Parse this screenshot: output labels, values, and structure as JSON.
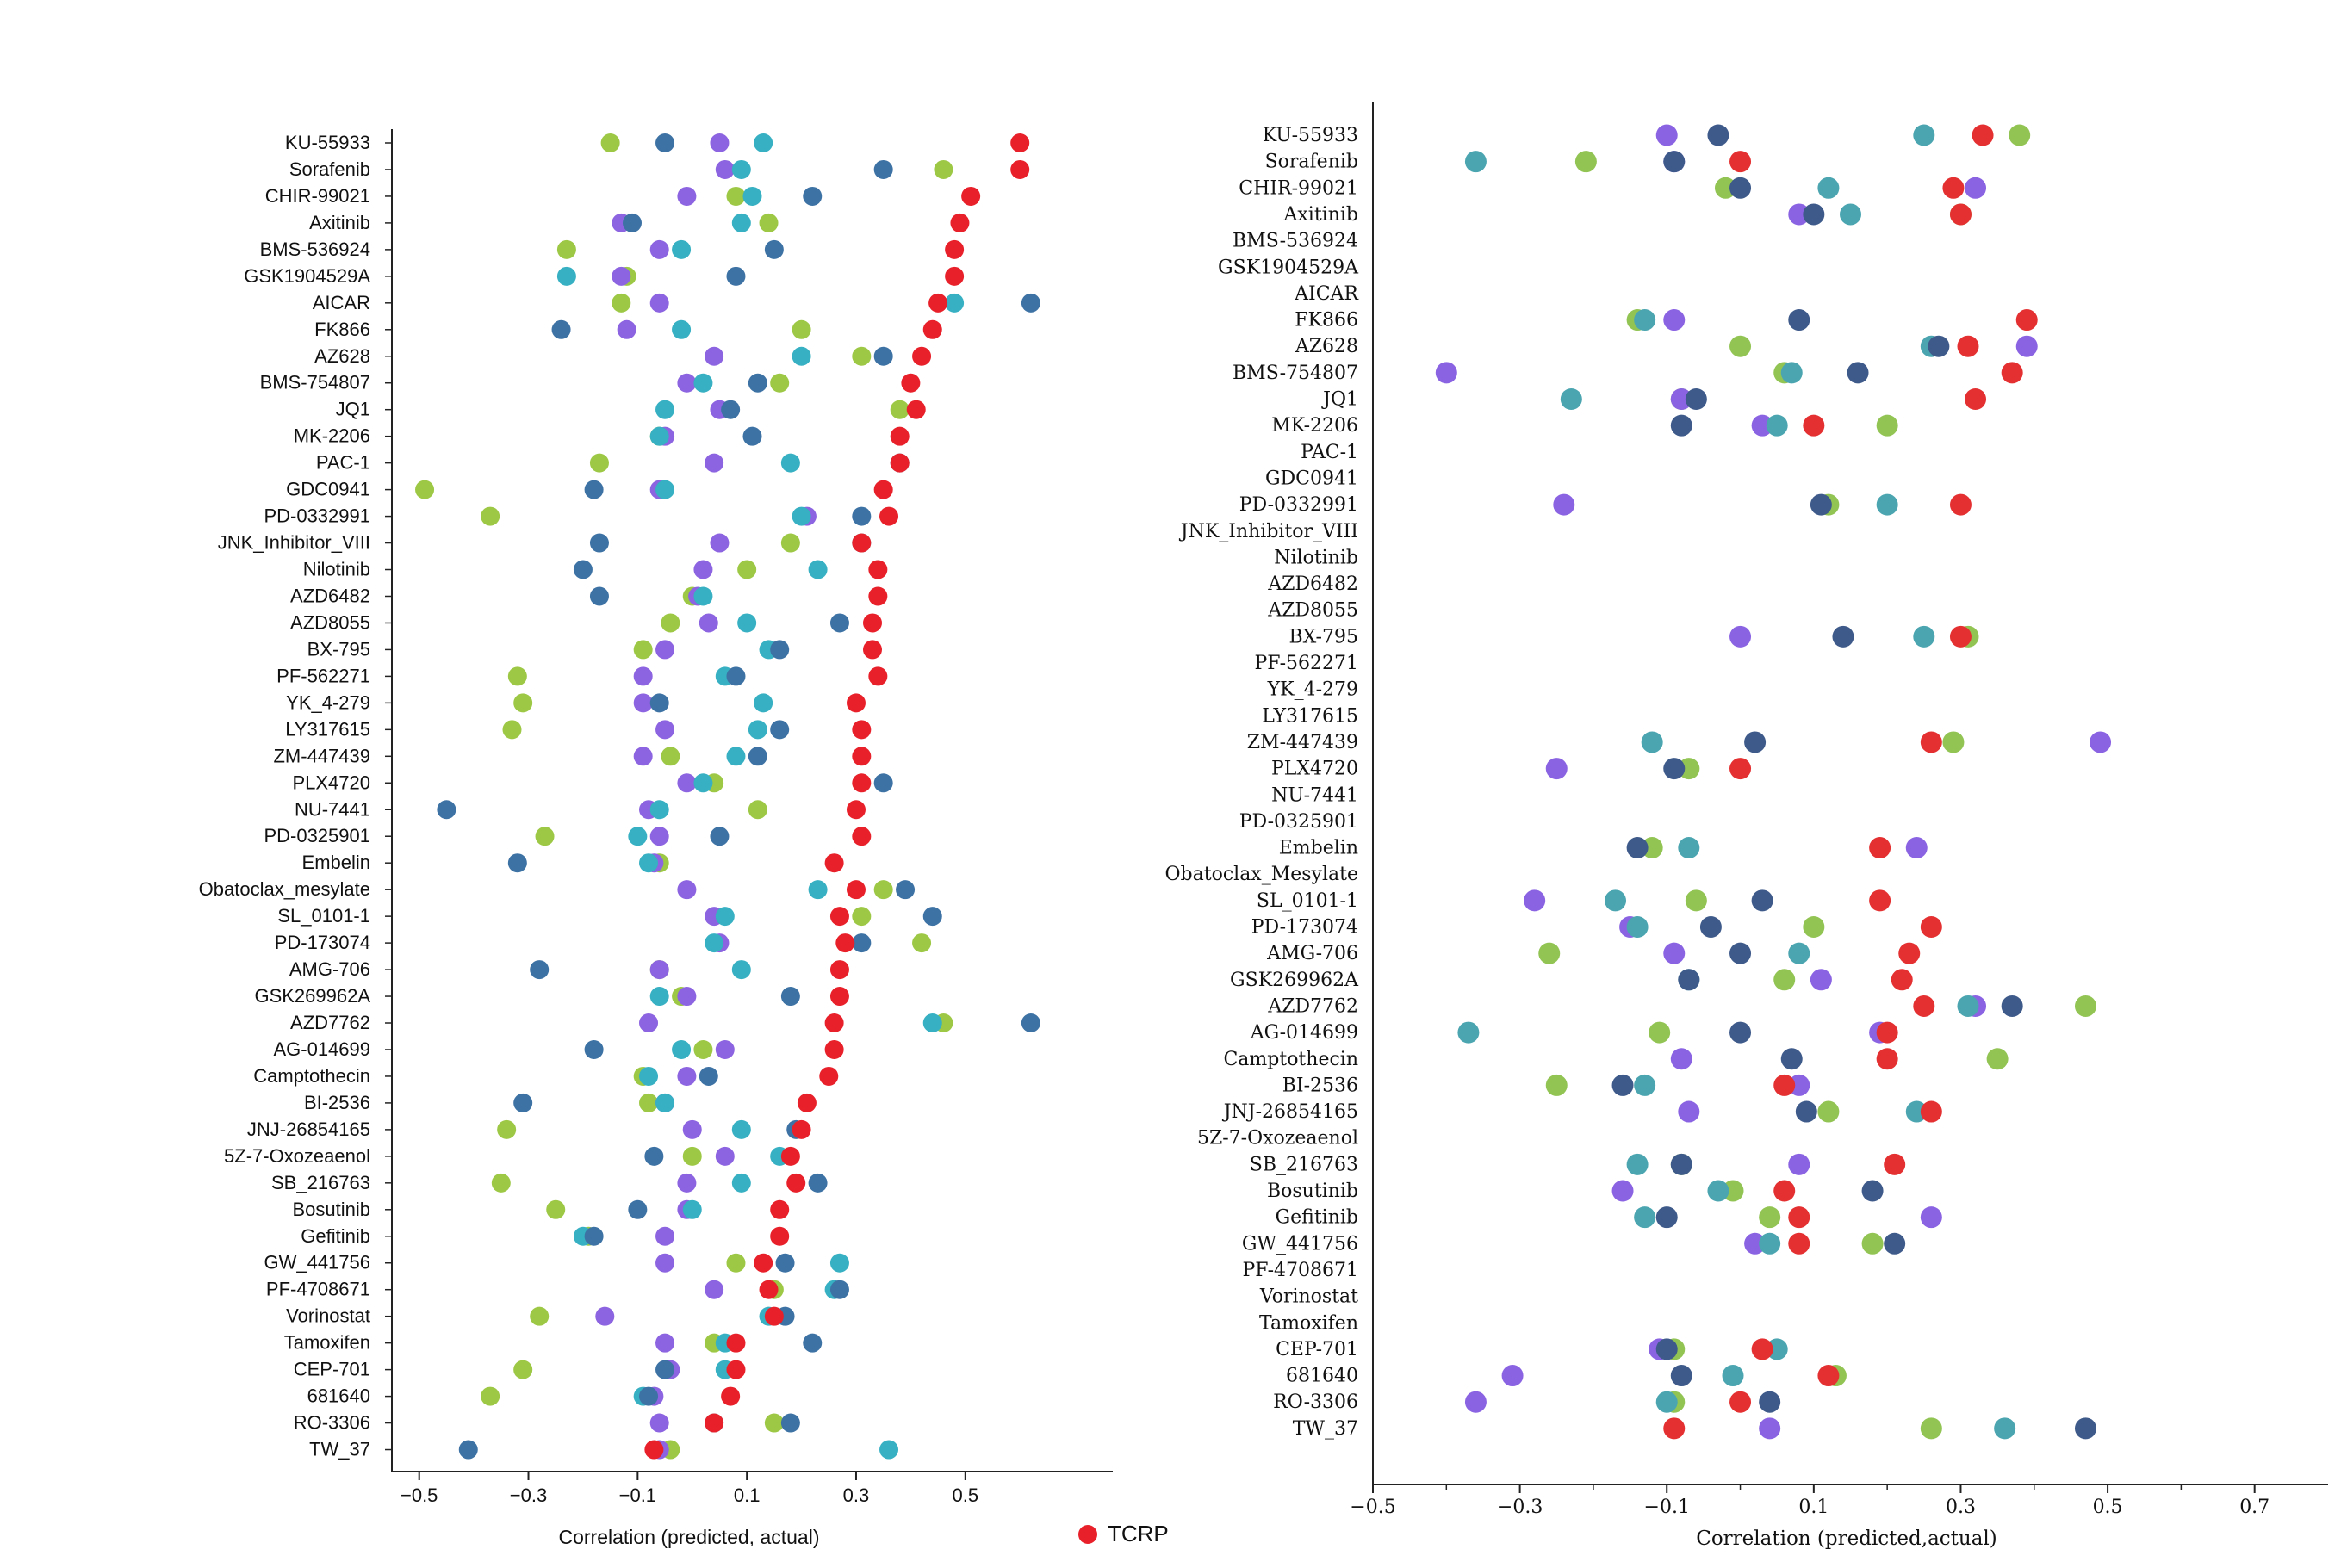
{
  "chart_data": [
    {
      "type": "scatter",
      "xlabel": "Correlation (predicted, actual)",
      "xticks": [
        -0.5,
        -0.3,
        -0.1,
        0.1,
        0.3,
        0.5
      ],
      "xlim": [
        -0.55,
        0.77
      ],
      "legend": {
        "placement": "bottom-right",
        "entries": [
          {
            "name": "TCRP",
            "color": "#e8202a"
          }
        ]
      },
      "colors": {
        "green": "#9dc845",
        "purple": "#8c63e0",
        "teal": "#36b0c2",
        "blue": "#3d72a4",
        "red": "#e8202a"
      },
      "drugs": [
        "KU-55933",
        "Sorafenib",
        "CHIR-99021",
        "Axitinib",
        "BMS-536924",
        "GSK1904529A",
        "AICAR",
        "FK866",
        "AZ628",
        "BMS-754807",
        "JQ1",
        "MK-2206",
        "PAC-1",
        "GDC0941",
        "PD-0332991",
        "JNK_Inhibitor_VIII",
        "Nilotinib",
        "AZD6482",
        "AZD8055",
        "BX-795",
        "PF-562271",
        "YK_4-279",
        "LY317615",
        "ZM-447439",
        "PLX4720",
        "NU-7441",
        "PD-0325901",
        "Embelin",
        "Obatoclax_mesylate",
        "SL_0101-1",
        "PD-173074",
        "AMG-706",
        "GSK269962A",
        "AZD7762",
        "AG-014699",
        "Camptothecin",
        "BI-2536",
        "JNJ-26854165",
        "5Z-7-Oxozeaenol",
        "SB_216763",
        "Bosutinib",
        "Gefitinib",
        "GW_441756",
        "PF-4708671",
        "Vorinostat",
        "Tamoxifen",
        "CEP-701",
        "681640",
        "RO-3306",
        "TW_37"
      ],
      "series": [
        {
          "color": "green",
          "values": [
            -0.15,
            0.46,
            0.08,
            0.14,
            -0.23,
            -0.12,
            -0.13,
            0.2,
            0.31,
            0.16,
            0.38,
            -0.06,
            -0.17,
            -0.49,
            -0.37,
            0.18,
            0.1,
            0.0,
            -0.04,
            -0.09,
            -0.32,
            -0.31,
            -0.33,
            -0.04,
            0.04,
            0.12,
            -0.27,
            -0.06,
            0.35,
            0.31,
            0.42,
            -0.06,
            -0.02,
            0.46,
            0.02,
            -0.09,
            -0.08,
            -0.34,
            0.0,
            -0.35,
            -0.25,
            -0.19,
            0.08,
            0.15,
            -0.28,
            0.04,
            -0.31,
            -0.37,
            0.15,
            -0.04
          ]
        },
        {
          "color": "purple",
          "values": [
            0.05,
            0.06,
            -0.01,
            -0.13,
            -0.06,
            -0.13,
            -0.06,
            -0.12,
            0.04,
            -0.01,
            0.05,
            -0.05,
            0.04,
            -0.06,
            0.21,
            0.05,
            0.02,
            0.01,
            0.03,
            -0.05,
            -0.09,
            -0.09,
            -0.05,
            -0.09,
            -0.01,
            -0.08,
            -0.06,
            -0.07,
            -0.01,
            0.04,
            0.05,
            -0.06,
            -0.01,
            -0.08,
            0.06,
            -0.01,
            -0.05,
            0.0,
            0.06,
            -0.01,
            -0.01,
            -0.05,
            -0.05,
            0.04,
            -0.16,
            -0.05,
            -0.04,
            -0.07,
            -0.06,
            -0.06
          ]
        },
        {
          "color": "teal",
          "values": [
            0.13,
            0.09,
            0.11,
            0.09,
            -0.02,
            -0.23,
            0.48,
            -0.02,
            0.2,
            0.02,
            -0.05,
            -0.06,
            0.18,
            -0.05,
            0.2,
            0.31,
            0.23,
            0.02,
            0.1,
            0.14,
            0.06,
            0.13,
            0.12,
            0.08,
            0.02,
            -0.06,
            -0.1,
            -0.08,
            0.23,
            0.06,
            0.04,
            0.09,
            -0.06,
            0.44,
            -0.02,
            -0.08,
            -0.05,
            0.09,
            0.16,
            0.09,
            0.0,
            -0.2,
            0.27,
            0.26,
            0.14,
            0.06,
            0.06,
            -0.09,
            0.04,
            0.36
          ]
        },
        {
          "color": "blue",
          "values": [
            -0.05,
            0.35,
            0.22,
            -0.11,
            0.15,
            0.08,
            0.62,
            -0.24,
            0.35,
            0.12,
            0.07,
            0.11,
            0.38,
            -0.18,
            0.31,
            -0.17,
            -0.2,
            -0.17,
            0.27,
            0.16,
            0.08,
            -0.06,
            0.16,
            0.12,
            0.35,
            -0.45,
            0.05,
            -0.32,
            0.39,
            0.44,
            0.31,
            -0.28,
            0.18,
            0.62,
            -0.18,
            0.03,
            -0.31,
            0.19,
            -0.07,
            0.23,
            -0.1,
            -0.18,
            0.17,
            0.27,
            0.17,
            0.22,
            -0.05,
            -0.08,
            0.18,
            -0.41
          ]
        },
        {
          "color": "red",
          "values": [
            0.6,
            0.6,
            0.51,
            0.49,
            0.48,
            0.48,
            0.45,
            0.44,
            0.42,
            0.4,
            0.41,
            0.38,
            0.38,
            0.35,
            0.36,
            0.31,
            0.34,
            0.34,
            0.33,
            0.33,
            0.34,
            0.3,
            0.31,
            0.31,
            0.31,
            0.3,
            0.31,
            0.26,
            0.3,
            0.27,
            0.28,
            0.27,
            0.27,
            0.26,
            0.26,
            0.25,
            0.21,
            0.2,
            0.18,
            0.19,
            0.16,
            0.16,
            0.13,
            0.14,
            0.15,
            0.08,
            0.08,
            0.07,
            0.04,
            -0.07
          ]
        }
      ]
    },
    {
      "type": "scatter",
      "xlabel": "Correlation (predicted,actual)",
      "xticks": [
        -0.5,
        -0.3,
        -0.1,
        0.1,
        0.3,
        0.5,
        0.7
      ],
      "xlim": [
        -0.5,
        0.8
      ],
      "colors": {
        "green": "#92c454",
        "purple": "#8a63e3",
        "teal": "#4aa5b0",
        "blue": "#3e5a8a",
        "red": "#e43031"
      },
      "drugs": [
        "KU-55933",
        "Sorafenib",
        "CHIR-99021",
        "Axitinib",
        "BMS-536924",
        "GSK1904529A",
        "AICAR",
        "FK866",
        "AZ628",
        "BMS-754807",
        "JQ1",
        "MK-2206",
        "PAC-1",
        "GDC0941",
        "PD-0332991",
        "JNK_Inhibitor_VIII",
        "Nilotinib",
        "AZD6482",
        "AZD8055",
        "BX-795",
        "PF-562271",
        "YK_4-279",
        "LY317615",
        "ZM-447439",
        "PLX4720",
        "NU-7441",
        "PD-0325901",
        "Embelin",
        "Obatoclax_Mesylate",
        "SL_0101-1",
        "PD-173074",
        "AMG-706",
        "GSK269962A",
        "AZD7762",
        "AG-014699",
        "Camptothecin",
        "BI-2536",
        "JNJ-26854165",
        "5Z-7-Oxozeaenol",
        "SB_216763",
        "Bosutinib",
        "Gefitinib",
        "GW_441756",
        "PF-4708671",
        "Vorinostat",
        "Tamoxifen",
        "CEP-701",
        "681640",
        "RO-3306",
        "TW_37"
      ],
      "series": [
        {
          "color": "green",
          "values": [
            0.38,
            -0.21,
            -0.02,
            0.3,
            null,
            null,
            null,
            -0.14,
            0.0,
            0.06,
            -0.08,
            0.2,
            null,
            null,
            0.12,
            null,
            null,
            null,
            null,
            0.31,
            null,
            null,
            null,
            0.29,
            -0.07,
            null,
            null,
            -0.12,
            null,
            -0.06,
            0.1,
            -0.26,
            0.06,
            0.47,
            -0.11,
            0.35,
            -0.25,
            0.12,
            null,
            -0.08,
            -0.01,
            0.04,
            0.18,
            null,
            null,
            null,
            -0.09,
            0.13,
            -0.09,
            0.26
          ]
        },
        {
          "color": "purple",
          "values": [
            -0.1,
            -0.09,
            0.32,
            0.08,
            null,
            null,
            null,
            -0.09,
            0.39,
            -0.4,
            -0.08,
            0.03,
            null,
            null,
            -0.24,
            null,
            null,
            null,
            null,
            0.0,
            null,
            null,
            null,
            0.49,
            -0.25,
            null,
            null,
            0.24,
            null,
            -0.28,
            -0.15,
            -0.09,
            0.11,
            0.32,
            0.19,
            -0.08,
            0.08,
            -0.07,
            null,
            0.08,
            -0.16,
            0.26,
            0.02,
            null,
            null,
            null,
            -0.11,
            -0.31,
            -0.36,
            0.04
          ]
        },
        {
          "color": "teal",
          "values": [
            0.25,
            -0.36,
            0.12,
            0.15,
            null,
            null,
            null,
            -0.13,
            0.26,
            0.07,
            -0.23,
            0.05,
            null,
            null,
            0.2,
            null,
            null,
            null,
            null,
            0.25,
            null,
            null,
            null,
            -0.12,
            null,
            null,
            null,
            -0.07,
            null,
            -0.17,
            -0.14,
            0.08,
            -0.07,
            0.31,
            -0.37,
            null,
            -0.13,
            0.24,
            null,
            -0.14,
            -0.03,
            -0.13,
            0.04,
            null,
            null,
            null,
            0.05,
            -0.01,
            -0.1,
            0.36
          ]
        },
        {
          "color": "blue",
          "values": [
            -0.03,
            -0.09,
            0.0,
            0.1,
            null,
            null,
            null,
            0.08,
            0.27,
            0.16,
            -0.06,
            -0.08,
            null,
            null,
            0.11,
            null,
            null,
            null,
            null,
            0.14,
            null,
            null,
            null,
            0.02,
            -0.09,
            null,
            null,
            -0.14,
            null,
            0.03,
            -0.04,
            0.0,
            -0.07,
            0.37,
            0.0,
            0.07,
            -0.16,
            0.09,
            null,
            -0.08,
            0.18,
            -0.1,
            0.21,
            null,
            null,
            null,
            -0.1,
            -0.08,
            0.04,
            0.47
          ]
        },
        {
          "color": "red",
          "values": [
            0.33,
            0.0,
            0.29,
            0.3,
            null,
            null,
            null,
            0.39,
            0.31,
            0.37,
            0.32,
            0.1,
            null,
            null,
            0.3,
            null,
            null,
            null,
            null,
            0.3,
            null,
            null,
            null,
            0.26,
            0.0,
            null,
            null,
            0.19,
            null,
            0.19,
            0.26,
            0.23,
            0.22,
            0.25,
            0.2,
            0.2,
            0.06,
            0.26,
            null,
            0.21,
            0.06,
            0.08,
            0.08,
            null,
            null,
            null,
            0.03,
            0.12,
            0.0,
            -0.09
          ]
        }
      ]
    }
  ]
}
